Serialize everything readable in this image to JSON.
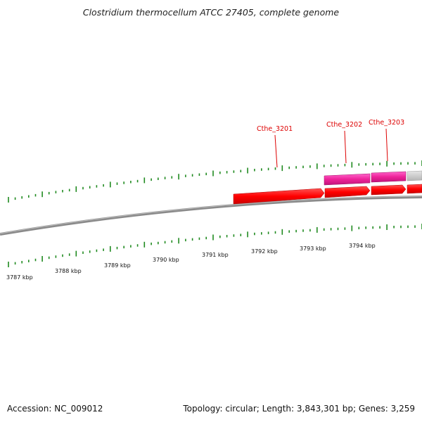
{
  "title": "Clostridium thermocellum ATCC 27405, complete genome",
  "footer": {
    "accession": "Accession: NC_009012",
    "summary": "Topology: circular; Length: 3,843,301 bp; Genes: 3,259"
  },
  "ruler_labels": [
    "3787 kbp",
    "3788 kbp",
    "3789 kbp",
    "3790 kbp",
    "3791 kbp",
    "3792 kbp",
    "3793 kbp",
    "3794 kbp"
  ],
  "gene_labels": [
    "Cthe_3201",
    "Cthe_3202",
    "Cthe_3203"
  ],
  "colors": {
    "backbone": "#8a8a8a",
    "tick": "#1f8a1f",
    "cds": "#ff0000",
    "feature_pink": "#ee2299",
    "feature_gray": "#c8c8c8",
    "label": "#dd0000"
  }
}
